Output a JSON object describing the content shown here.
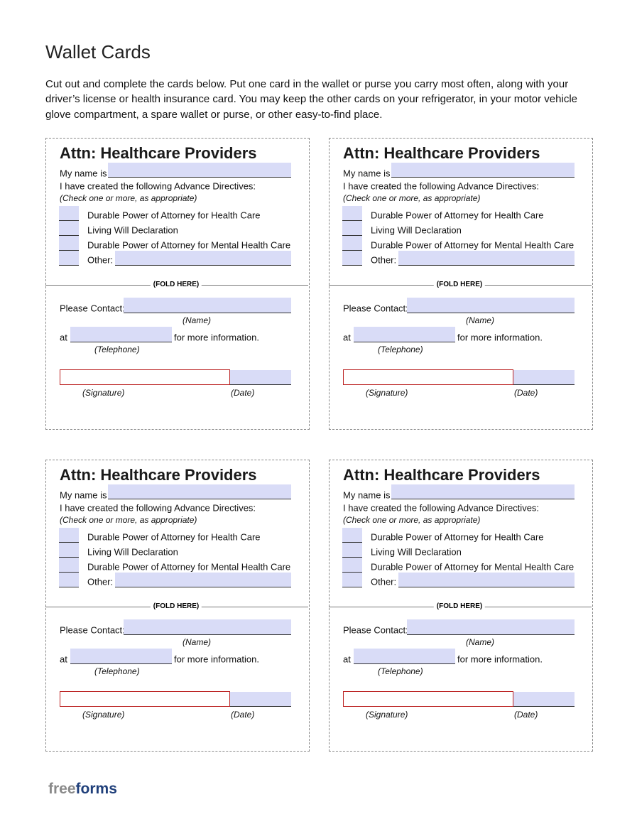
{
  "header": {
    "title": "Wallet Cards",
    "intro_lines": [
      "Cut out and complete the cards below.  Put one card in the wallet or purse you carry most often, along with your",
      "driver’s license or health insurance card. You may keep the other cards on your refrigerator, in your motor vehicle",
      "glove compartment, a spare wallet or purse, or other easy-to-find place."
    ]
  },
  "cards": [
    {
      "title": "Attn: Healthcare Providers",
      "name_label": "My name is",
      "directives_intro": "I have created the following Advance Directives:",
      "check_note": "(Check one or more, as appropriate)",
      "options": [
        "Durable Power of Attorney for Health Care",
        "Living Will Declaration",
        "Durable Power of Attorney for Mental Health Care",
        "Other:"
      ],
      "fold": "(FOLD HERE)",
      "contact_label": "Please Contact:",
      "name_caption": "(Name)",
      "at_label": "at",
      "more_info": "for more information.",
      "phone_caption": "(Telephone)",
      "signature_caption": "(Signature)",
      "date_caption": "(Date)"
    },
    {
      "title": "Attn: Healthcare Providers",
      "name_label": "My name is",
      "directives_intro": "I have created the following Advance Directives:",
      "check_note": "(Check one or more, as appropriate)",
      "options": [
        "Durable Power of Attorney for Health Care",
        "Living Will Declaration",
        "Durable Power of Attorney for Mental Health Care",
        "Other:"
      ],
      "fold": "(FOLD HERE)",
      "contact_label": "Please Contact:",
      "name_caption": "(Name)",
      "at_label": "at",
      "more_info": "for more information.",
      "phone_caption": "(Telephone)",
      "signature_caption": "(Signature)",
      "date_caption": "(Date)"
    },
    {
      "title": "Attn: Healthcare Providers",
      "name_label": "My name is",
      "directives_intro": "I have created the following Advance Directives:",
      "check_note": "(Check one or more, as appropriate)",
      "options": [
        "Durable Power of Attorney for Health Care",
        "Living Will Declaration",
        "Durable Power of Attorney for Mental Health Care",
        "Other:"
      ],
      "fold": "(FOLD HERE)",
      "contact_label": "Please Contact:",
      "name_caption": "(Name)",
      "at_label": "at",
      "more_info": "for more information.",
      "phone_caption": "(Telephone)",
      "signature_caption": "(Signature)",
      "date_caption": "(Date)"
    },
    {
      "title": "Attn: Healthcare Providers",
      "name_label": "My name is",
      "directives_intro": "I have created the following Advance Directives:",
      "check_note": "(Check one or more, as appropriate)",
      "options": [
        "Durable Power of Attorney for Health Care",
        "Living Will Declaration",
        "Durable Power of Attorney for Mental Health Care",
        "Other:"
      ],
      "fold": "(FOLD HERE)",
      "contact_label": "Please Contact:",
      "name_caption": "(Name)",
      "at_label": "at",
      "more_info": "for more information.",
      "phone_caption": "(Telephone)",
      "signature_caption": "(Signature)",
      "date_caption": "(Date)"
    }
  ],
  "footer": {
    "logo_part1": "free",
    "logo_part2": "forms"
  }
}
